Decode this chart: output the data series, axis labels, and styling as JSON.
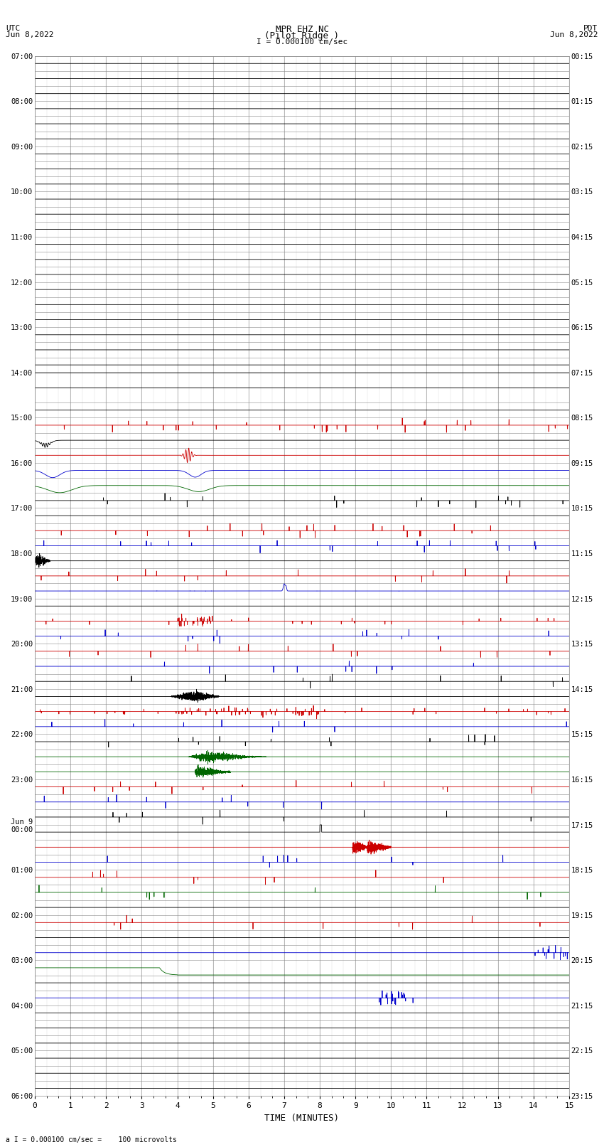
{
  "title_line1": "MPR EHZ NC",
  "title_line2": "(Pilot Ridge )",
  "scale_text": "I = 0.000100 cm/sec",
  "left_label_line1": "UTC",
  "left_label_line2": "Jun 8,2022",
  "right_label_line1": "PDT",
  "right_label_line2": "Jun 8,2022",
  "bottom_label": "a I = 0.000100 cm/sec =    100 microvolts",
  "xlabel": "TIME (MINUTES)",
  "left_times": [
    "07:00",
    "",
    "",
    "08:00",
    "",
    "",
    "09:00",
    "",
    "",
    "10:00",
    "",
    "",
    "11:00",
    "",
    "",
    "12:00",
    "",
    "",
    "13:00",
    "",
    "",
    "14:00",
    "",
    "",
    "15:00",
    "",
    "",
    "16:00",
    "",
    "",
    "17:00",
    "",
    "",
    "18:00",
    "",
    "",
    "19:00",
    "",
    "",
    "20:00",
    "",
    "",
    "21:00",
    "",
    "",
    "22:00",
    "",
    "",
    "23:00",
    "",
    "",
    "Jun 9\n00:00",
    "",
    "",
    "01:00",
    "",
    "",
    "02:00",
    "",
    "",
    "03:00",
    "",
    "",
    "04:00",
    "",
    "",
    "05:00",
    "",
    "",
    "06:00",
    "",
    ""
  ],
  "right_times": [
    "00:15",
    "",
    "",
    "01:15",
    "",
    "",
    "02:15",
    "",
    "",
    "03:15",
    "",
    "",
    "04:15",
    "",
    "",
    "05:15",
    "",
    "",
    "06:15",
    "",
    "",
    "07:15",
    "",
    "",
    "08:15",
    "",
    "",
    "09:15",
    "",
    "",
    "10:15",
    "",
    "",
    "11:15",
    "",
    "",
    "12:15",
    "",
    "",
    "13:15",
    "",
    "",
    "14:15",
    "",
    "",
    "15:15",
    "",
    "",
    "16:15",
    "",
    "",
    "17:15",
    "",
    "",
    "18:15",
    "",
    "",
    "19:15",
    "",
    "",
    "20:15",
    "",
    "",
    "21:15",
    "",
    "",
    "22:15",
    "",
    "",
    "23:15",
    "",
    ""
  ],
  "n_rows": 69,
  "x_min": 0,
  "x_max": 15,
  "bg_color": "#ffffff",
  "grid_color": "#888888",
  "col_black": "#000000",
  "col_red": "#cc0000",
  "col_blue": "#0000cc",
  "col_green": "#006600"
}
